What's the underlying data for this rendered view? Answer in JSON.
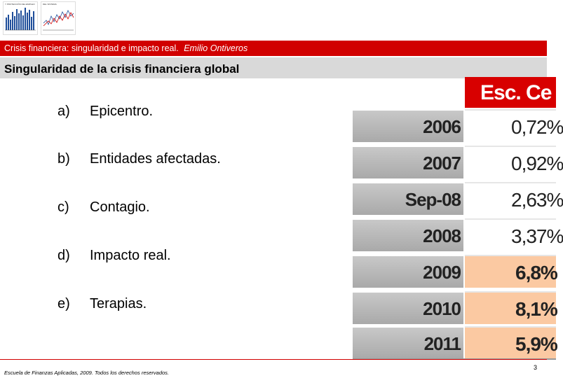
{
  "thumbnails": [
    {
      "caption": "Y PROTECCIÓN DEL EMPLEO"
    },
    {
      "caption": "DEL SISTEMA"
    }
  ],
  "header": {
    "subtitle": "Crisis financiera: singularidad e impacto real.",
    "author": "Emilio Ontiveros"
  },
  "slide": {
    "title": "Singularidad de la crisis financiera global"
  },
  "list": [
    {
      "letter": "a)",
      "text": "Epicentro."
    },
    {
      "letter": "b)",
      "text": "Entidades afectadas."
    },
    {
      "letter": "c)",
      "text": "Contagio."
    },
    {
      "letter": "d)",
      "text": "Impacto real."
    },
    {
      "letter": "e)",
      "text": "Terapias."
    }
  ],
  "table": {
    "header": "Esc. Ce",
    "rows": [
      {
        "year": "2006",
        "value": "0,72%",
        "highlight": false
      },
      {
        "year": "2007",
        "value": "0,92%",
        "highlight": false
      },
      {
        "year": "Sep-08",
        "value": "2,63%",
        "highlight": false
      },
      {
        "year": "2008",
        "value": "3,37%",
        "highlight": false
      },
      {
        "year": "2009",
        "value": "6,8%",
        "highlight": true
      },
      {
        "year": "2010",
        "value": "8,1%",
        "highlight": true
      },
      {
        "year": "2011",
        "value": "5,9%",
        "highlight": true
      }
    ],
    "colors": {
      "header": "#d80000",
      "highlight": "#fbc9a2"
    }
  },
  "footer": {
    "text": "Escuela de Finanzas Aplicadas, 2009. Todos los derechos reservados.",
    "page": "3"
  }
}
